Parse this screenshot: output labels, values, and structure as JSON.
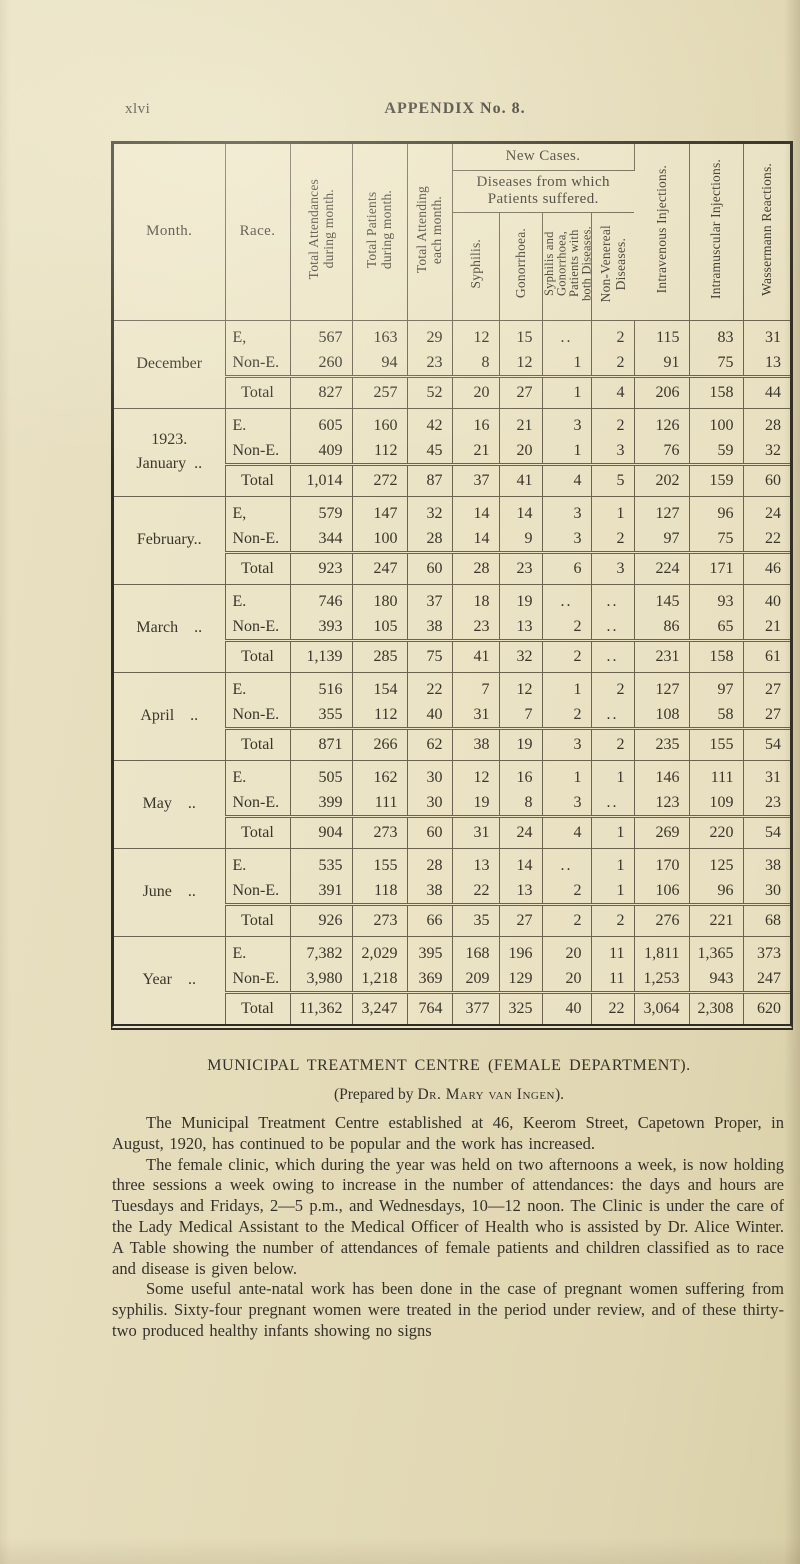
{
  "page": {
    "folio": "xlvi",
    "heading": "APPENDIX No. 8."
  },
  "table": {
    "headers": {
      "month": "Month.",
      "race": "Race.",
      "total_attendances": "Total Attendances\nduring month.",
      "total_patients": "Total Patients\nduring month.",
      "total_attending": "Total Attending\neach month.",
      "new_cases": "New Cases.",
      "diseases": "Diseases from which\nPatients suffered.",
      "syphilis": "Syphilis.",
      "gonorrhoea": "Gonorrhoea.",
      "syph_and_gon": "Syphilis and\nGonorrhoea,\nPatients with\nboth Diseases.",
      "non_venereal": "Non-Venereal\nDiseases.",
      "intravenous": "Intravenous Injections.",
      "intramuscular": "Intramuscular Injections.",
      "wassermann": "Wassermann Reactions."
    },
    "groups": [
      {
        "month": "December",
        "rows": [
          {
            "race": "E,",
            "values": [
              "567",
              "163",
              "29",
              "12",
              "15",
              "..",
              "2",
              "115",
              "83",
              "31"
            ]
          },
          {
            "race": "Non-E.",
            "values": [
              "260",
              "94",
              "23",
              "8",
              "12",
              "1",
              "2",
              "91",
              "75",
              "13"
            ]
          }
        ],
        "total": {
          "label": "Total",
          "values": [
            "827",
            "257",
            "52",
            "20",
            "27",
            "1",
            "4",
            "206",
            "158",
            "44"
          ]
        }
      },
      {
        "month": "1923.\nJanuary ..",
        "rows": [
          {
            "race": "E.",
            "values": [
              "605",
              "160",
              "42",
              "16",
              "21",
              "3",
              "2",
              "126",
              "100",
              "28"
            ]
          },
          {
            "race": "Non-E.",
            "values": [
              "409",
              "112",
              "45",
              "21",
              "20",
              "1",
              "3",
              "76",
              "59",
              "32"
            ]
          }
        ],
        "total": {
          "label": "Total",
          "values": [
            "1,014",
            "272",
            "87",
            "37",
            "41",
            "4",
            "5",
            "202",
            "159",
            "60"
          ]
        }
      },
      {
        "month": "February..",
        "rows": [
          {
            "race": "E,",
            "values": [
              "579",
              "147",
              "32",
              "14",
              "14",
              "3",
              "1",
              "127",
              "96",
              "24"
            ]
          },
          {
            "race": "Non-E.",
            "values": [
              "344",
              "100",
              "28",
              "14",
              "9",
              "3",
              "2",
              "97",
              "75",
              "22"
            ]
          }
        ],
        "total": {
          "label": "Total",
          "values": [
            "923",
            "247",
            "60",
            "28",
            "23",
            "6",
            "3",
            "224",
            "171",
            "46"
          ]
        }
      },
      {
        "month": "March ..",
        "rows": [
          {
            "race": "E.",
            "values": [
              "746",
              "180",
              "37",
              "18",
              "19",
              "..",
              "..",
              "145",
              "93",
              "40"
            ]
          },
          {
            "race": "Non-E.",
            "values": [
              "393",
              "105",
              "38",
              "23",
              "13",
              "2",
              "..",
              "86",
              "65",
              "21"
            ]
          }
        ],
        "total": {
          "label": "Total",
          "values": [
            "1,139",
            "285",
            "75",
            "41",
            "32",
            "2",
            "..",
            "231",
            "158",
            "61"
          ]
        }
      },
      {
        "month": "April ..",
        "rows": [
          {
            "race": "E.",
            "values": [
              "516",
              "154",
              "22",
              "7",
              "12",
              "1",
              "2",
              "127",
              "97",
              "27"
            ]
          },
          {
            "race": "Non-E.",
            "values": [
              "355",
              "112",
              "40",
              "31",
              "7",
              "2",
              "..",
              "108",
              "58",
              "27"
            ]
          }
        ],
        "total": {
          "label": "Total",
          "values": [
            "871",
            "266",
            "62",
            "38",
            "19",
            "3",
            "2",
            "235",
            "155",
            "54"
          ]
        }
      },
      {
        "month": "May ..",
        "rows": [
          {
            "race": "E.",
            "values": [
              "505",
              "162",
              "30",
              "12",
              "16",
              "1",
              "1",
              "146",
              "111",
              "31"
            ]
          },
          {
            "race": "Non-E.",
            "values": [
              "399",
              "111",
              "30",
              "19",
              "8",
              "3",
              "..",
              "123",
              "109",
              "23"
            ]
          }
        ],
        "total": {
          "label": "Total",
          "values": [
            "904",
            "273",
            "60",
            "31",
            "24",
            "4",
            "1",
            "269",
            "220",
            "54"
          ]
        }
      },
      {
        "month": "June ..",
        "rows": [
          {
            "race": "E.",
            "values": [
              "535",
              "155",
              "28",
              "13",
              "14",
              "..",
              "1",
              "170",
              "125",
              "38"
            ]
          },
          {
            "race": "Non-E.",
            "values": [
              "391",
              "118",
              "38",
              "22",
              "13",
              "2",
              "1",
              "106",
              "96",
              "30"
            ]
          }
        ],
        "total": {
          "label": "Total",
          "values": [
            "926",
            "273",
            "66",
            "35",
            "27",
            "2",
            "2",
            "276",
            "221",
            "68"
          ]
        }
      },
      {
        "month": "Year ..",
        "rows": [
          {
            "race": "E.",
            "values": [
              "7,382",
              "2,029",
              "395",
              "168",
              "196",
              "20",
              "11",
              "1,811",
              "1,365",
              "373"
            ]
          },
          {
            "race": "Non-E.",
            "values": [
              "3,980",
              "1,218",
              "369",
              "209",
              "129",
              "20",
              "11",
              "1,253",
              "943",
              "247"
            ]
          }
        ],
        "total": {
          "label": "Total",
          "values": [
            "11,362",
            "3,247",
            "764",
            "377",
            "325",
            "40",
            "22",
            "3,064",
            "2,308",
            "620"
          ]
        }
      }
    ]
  },
  "section": {
    "title": "MUNICIPAL TREATMENT CENTRE (FEMALE DEPARTMENT).",
    "byline_prefix": "(Prepared by ",
    "byline_name": "Dr. Mary van Ingen",
    "byline_suffix": ").",
    "paragraphs": [
      "The Municipal Treatment Centre established at 46, Keerom Street, Capetown Proper, in August, 1920, has continued to be popular and the work has increased.",
      "The female clinic, which during the year was held on two afternoons a week, is now holding three sessions a week owing to increase in the number of attendances: the days and hours are Tuesdays and Fridays, 2—5 p.m., and Wednesdays, 10—12 noon.  The Clinic is under the care of the Lady Medical Assistant to the Medical Officer of Health who is assisted by Dr. Alice Winter. A Table showing the number of attendances of female patients and children classified as to race and disease is given below.",
      "Some useful ante-natal work has been done in the case of pregnant women suffering from syphilis.  Sixty-four pregnant women were treated in the period under review, and of these thirty-two produced healthy infants showing no signs"
    ]
  }
}
